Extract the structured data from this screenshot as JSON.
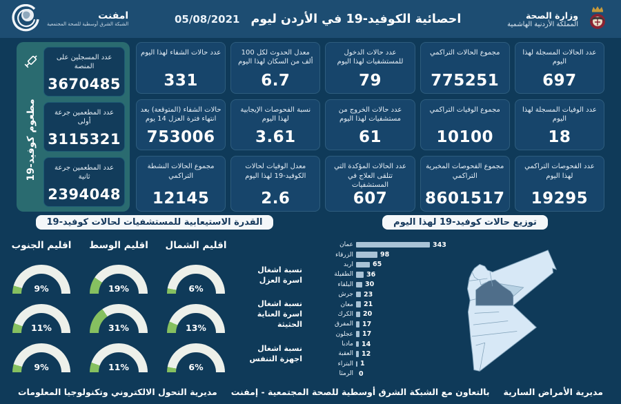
{
  "header": {
    "ministry_line1": "وزارة الصحة",
    "ministry_line2": "المملكة الأردنية الهاشمية",
    "title": "احصائية الكوفيد-19 في الأردن ليوم",
    "date": "05/08/2021",
    "emphnet_name": "امفنت",
    "emphnet_sub": "الشبكة الشرق أوسطية للصحة المجتمعية"
  },
  "stats": {
    "rows": [
      [
        {
          "label": "عدد الحالات المسجلة لهذا اليوم",
          "value": "697"
        },
        {
          "label": "مجموع الحالات التراكمي",
          "value": "775251"
        },
        {
          "label": "عدد حالات الدخول للمستشفيات لهذا اليوم",
          "value": "79"
        },
        {
          "label": "معدل الحدوث لكل 100 ألف من السكان لهذا اليوم",
          "value": "6.7"
        },
        {
          "label": "عدد حالات الشفاء لهذا اليوم",
          "value": "331"
        }
      ],
      [
        {
          "label": "عدد الوفيات المسجلة لهذا اليوم",
          "value": "18"
        },
        {
          "label": "مجموع الوفيات التراكمي",
          "value": "10100"
        },
        {
          "label": "عدد حالات الخروج من مستشفيات لهذا اليوم",
          "value": "61"
        },
        {
          "label": "نسبة الفحوصات الإيجابية لهذا اليوم",
          "value": "3.61"
        },
        {
          "label": "حالات الشفاء (المتوقعة) بعد انتهاء فترة العزل 14 يوم",
          "value": "753006"
        }
      ],
      [
        {
          "label": "عدد الفحوصات التراكمي لهذا اليوم",
          "value": "19295"
        },
        {
          "label": "مجموع الفحوصات المخبرية التراكمي",
          "value": "8601517"
        },
        {
          "label": "عدد الحالات المؤكدة التي تتلقى العلاج في المستشفيات",
          "value": "607"
        },
        {
          "label": "معدل الوفيات لحالات الكوفيد-19 لهذا اليوم",
          "value": "2.6"
        },
        {
          "label": "مجموع الحالات النشطة التراكمي",
          "value": "12145"
        }
      ]
    ]
  },
  "vaccine": {
    "side_label": "مطعوم كوفيد-19",
    "cards": [
      {
        "label": "عدد المسجلين على المنصة",
        "value": "3670485"
      },
      {
        "label": "عدد المطعمين جرعة أولى",
        "value": "3115321"
      },
      {
        "label": "عدد المطعمين جرعة ثانية",
        "value": "2394048"
      }
    ]
  },
  "distribution": {
    "title": "توزيع حالات كوفيد-19 لهذا اليوم"
  },
  "capacity": {
    "title": "القدرة الاستيعابية للمستشفيات لحالات كوفيد-19"
  },
  "chart_data": [
    {
      "type": "bar",
      "orientation": "horizontal",
      "title": "توزيع حالات كوفيد-19 لهذا اليوم",
      "categories": [
        "عمان",
        "الزرقاء",
        "اربد",
        "الطفيلة",
        "البلقاء",
        "جرش",
        "معان",
        "الكرك",
        "المفرق",
        "عجلون",
        "مادبا",
        "العقبة",
        "البتراء",
        "الرمثا"
      ],
      "values": [
        343,
        98,
        65,
        36,
        30,
        23,
        21,
        20,
        17,
        17,
        14,
        12,
        1,
        0
      ],
      "xlim": [
        0,
        343
      ]
    },
    {
      "type": "gauge-grid",
      "title": "القدرة الاستيعابية للمستشفيات لحالات كوفيد-19",
      "unit": "%",
      "columns": [
        "اقليم الشمال",
        "اقليم الوسط",
        "اقليم الجنوب"
      ],
      "rows": [
        {
          "label": "نسبة اشغال اسرة العزل",
          "values": [
            6,
            19,
            9
          ]
        },
        {
          "label": "نسبة اشغال اسرة العناية الحثيثة",
          "values": [
            13,
            31,
            11
          ]
        },
        {
          "label": "نسبة اشغال اجهزة التنفس",
          "values": [
            6,
            11,
            9
          ]
        }
      ]
    }
  ],
  "footer": {
    "right": "مديرية الأمراض السارية",
    "center": "بالتعاون مع الشبكة الشرق أوسطية للصحة المجتمعية - إمفنت",
    "left": "مديرية التحول الالكتروني وتكنولوجيا المعلومات"
  },
  "icons": {
    "jordan-coat-of-arms-icon": "crown-and-eagle emblem",
    "emphnet-globe-icon": "globe with crescent swoosh",
    "syringe-icon": "vaccine syringe",
    "jordan-map": "map of Jordan governorates, Amman highlighted dark, Zarqa medium"
  },
  "colors": {
    "background": "#0f3a59",
    "header": "#1d4d72",
    "card": "#17456b",
    "card_border": "#2e5d7e",
    "vaccine_panel": "#2a6b70",
    "bar": "#a9c3d6",
    "gauge_green": "#86c060",
    "gauge_track": "#edf0ea",
    "map_base": "#d7e8f6",
    "map_amman": "#4f6e8a",
    "map_zarqa": "#b7d1e3"
  }
}
